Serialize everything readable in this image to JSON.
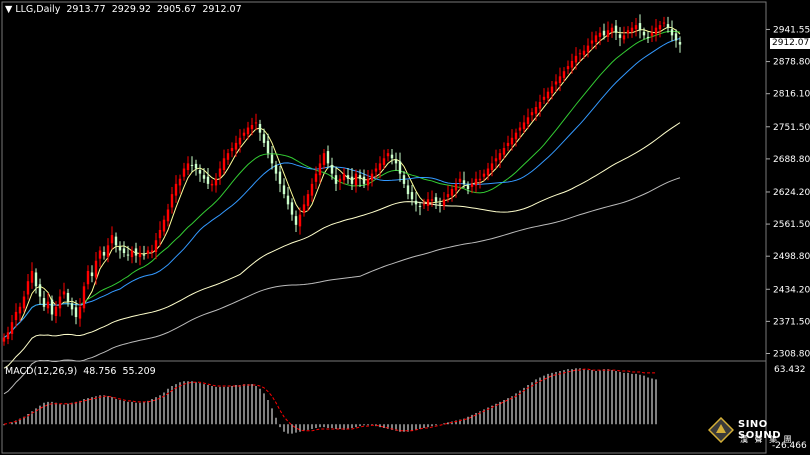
{
  "header": {
    "symbol": "LLG,Daily",
    "open": "2913.77",
    "high": "2929.92",
    "low": "2905.67",
    "close": "2912.07"
  },
  "price_tag": "2912.07",
  "macd_header": {
    "label": "MACD(12,26,9)",
    "macd": "48.756",
    "signal": "55.209"
  },
  "macd_axis": {
    "top": "63.432",
    "bottom": "-26.466"
  },
  "logo": {
    "name": "SINO SOUND",
    "chinese": "漢 聲 集 團"
  },
  "colors": {
    "background": "#000000",
    "bull": "#ff0000",
    "bear": "#ccffcc",
    "ma_fast": "#ffff99",
    "ma_mid": "#33cc33",
    "ma_blue": "#3399ff",
    "ma_slow": "#ffffcc",
    "ma_slowest": "#bbbbbb",
    "macd_hist": "#ffffff",
    "macd_signal": "#ff0000"
  },
  "chart_data": [
    {
      "type": "candlestick",
      "title": "LLG,Daily",
      "ylim": [
        2300,
        2960
      ],
      "yticks": [
        "2941.55",
        "2878.80",
        "2816.10",
        "2751.50",
        "2688.80",
        "2624.20",
        "2561.50",
        "2498.80",
        "2434.20",
        "2371.50",
        "2308.80"
      ],
      "series": [
        {
          "name": "price",
          "x_day": [
            0,
            1,
            2,
            3,
            4,
            5,
            6,
            7,
            8,
            9,
            10,
            11,
            12,
            13,
            14,
            15,
            16,
            17,
            18,
            19,
            20,
            21,
            22,
            23,
            24,
            25,
            26,
            27,
            28,
            29,
            30,
            31,
            32,
            33,
            34,
            35,
            36,
            37,
            38,
            39,
            40,
            41,
            42,
            43,
            44,
            45,
            46,
            47,
            48,
            49,
            50,
            51,
            52,
            53,
            54,
            55,
            56,
            57,
            58,
            59,
            60,
            61,
            62,
            63,
            64,
            65,
            66,
            67,
            68,
            69,
            70,
            71,
            72,
            73,
            74,
            75,
            76,
            77,
            78,
            79,
            80,
            81,
            82,
            83,
            84,
            85,
            86,
            87,
            88,
            89,
            90,
            91,
            92,
            93,
            94,
            95,
            96,
            97,
            98,
            99,
            100,
            101,
            102,
            103,
            104,
            105,
            106,
            107,
            108,
            109,
            110,
            111,
            112,
            113,
            114,
            115,
            116,
            117,
            118,
            119,
            120,
            121,
            122,
            123,
            124,
            125,
            126,
            127,
            128,
            129,
            130,
            131,
            132,
            133,
            134,
            135,
            136,
            137,
            138,
            139,
            140,
            141,
            142,
            143,
            144,
            145,
            146,
            147,
            148,
            149,
            150,
            151,
            152,
            153,
            154,
            155,
            156,
            157,
            158,
            159,
            160,
            161,
            162,
            163,
            164,
            165,
            166,
            167,
            168,
            169
          ],
          "close": [
            2340,
            2350,
            2370,
            2390,
            2400,
            2420,
            2450,
            2470,
            2440,
            2420,
            2400,
            2410,
            2385,
            2400,
            2420,
            2430,
            2410,
            2395,
            2380,
            2400,
            2440,
            2470,
            2460,
            2490,
            2510,
            2500,
            2520,
            2540,
            2520,
            2510,
            2505,
            2500,
            2510,
            2500,
            2505,
            2500,
            2510,
            2510,
            2530,
            2550,
            2570,
            2590,
            2620,
            2640,
            2650,
            2670,
            2680,
            2675,
            2670,
            2660,
            2650,
            2640,
            2640,
            2650,
            2670,
            2690,
            2700,
            2710,
            2720,
            2730,
            2740,
            2750,
            2755,
            2760,
            2740,
            2720,
            2700,
            2680,
            2660,
            2640,
            2620,
            2600,
            2580,
            2560,
            2580,
            2600,
            2620,
            2640,
            2660,
            2680,
            2700,
            2680,
            2660,
            2640,
            2650,
            2660,
            2650,
            2640,
            2660,
            2650,
            2640,
            2650,
            2660,
            2670,
            2680,
            2690,
            2700,
            2690,
            2680,
            2660,
            2640,
            2620,
            2610,
            2600,
            2595,
            2600,
            2610,
            2610,
            2605,
            2600,
            2610,
            2620,
            2630,
            2640,
            2650,
            2640,
            2630,
            2640,
            2650,
            2650,
            2660,
            2670,
            2680,
            2690,
            2700,
            2710,
            2720,
            2730,
            2740,
            2750,
            2760,
            2770,
            2780,
            2790,
            2800,
            2810,
            2820,
            2830,
            2840,
            2850,
            2860,
            2870,
            2880,
            2890,
            2895,
            2900,
            2910,
            2920,
            2930,
            2935,
            2930,
            2940,
            2945,
            2935,
            2925,
            2930,
            2940,
            2945,
            2950,
            2940,
            2930,
            2925,
            2935,
            2945,
            2950,
            2955,
            2945,
            2930,
            2920,
            2912
          ]
        }
      ]
    },
    {
      "type": "bar",
      "title": "MACD(12,26,9)",
      "ylim": [
        -26.466,
        63.432
      ],
      "series": [
        {
          "name": "MACD",
          "values": [
            -1,
            0,
            2,
            4,
            6,
            8,
            11,
            14,
            17,
            20,
            23,
            24,
            24,
            23,
            22,
            21,
            22,
            23,
            24,
            25,
            27,
            28,
            29,
            30,
            31,
            31,
            30,
            29,
            27,
            26,
            25,
            24,
            24,
            23,
            23,
            24,
            25,
            27,
            29,
            31,
            34,
            38,
            41,
            43,
            45,
            46,
            46,
            46,
            45,
            44,
            43,
            42,
            41,
            40,
            40,
            40,
            40,
            41,
            42,
            42,
            43,
            43,
            43,
            41,
            38,
            33,
            26,
            17,
            7,
            -3,
            -8,
            -10,
            -10,
            -9,
            -8,
            -7,
            -6,
            -5,
            -4,
            -3,
            -3,
            -4,
            -4,
            -5,
            -5,
            -6,
            -5,
            -4,
            -3,
            -2,
            -1,
            -1,
            -1,
            -2,
            -3,
            -4,
            -5,
            -6,
            -7,
            -8,
            -8,
            -8,
            -7,
            -6,
            -5,
            -4,
            -3,
            -2,
            -1,
            0,
            1,
            2,
            3,
            4,
            5,
            6,
            8,
            10,
            12,
            14,
            16,
            18,
            20,
            22,
            24,
            26,
            28,
            30,
            33,
            36,
            39,
            42,
            45,
            48,
            50,
            52,
            54,
            55,
            56,
            57,
            58,
            59,
            59,
            60,
            60,
            59,
            58,
            58,
            57,
            58,
            59,
            59,
            58,
            57,
            56,
            55,
            55,
            54,
            54,
            53,
            52,
            50,
            49,
            48
          ]
        },
        {
          "name": "Signal",
          "values": [
            0,
            1,
            2,
            3,
            5,
            7,
            9,
            12,
            14,
            17,
            19,
            21,
            22,
            22,
            22,
            22,
            22,
            22,
            23,
            24,
            25,
            26,
            27,
            28,
            29,
            30,
            30,
            29,
            28,
            27,
            26,
            25,
            25,
            24,
            24,
            24,
            24,
            25,
            26,
            28,
            30,
            33,
            36,
            39,
            41,
            43,
            44,
            45,
            45,
            45,
            44,
            43,
            42,
            41,
            41,
            41,
            41,
            41,
            41,
            41,
            42,
            42,
            42,
            42,
            41,
            39,
            35,
            30,
            23,
            15,
            8,
            3,
            -1,
            -4,
            -6,
            -7,
            -7,
            -7,
            -6,
            -5,
            -5,
            -5,
            -5,
            -5,
            -5,
            -5,
            -5,
            -5,
            -4,
            -3,
            -2,
            -2,
            -1,
            -1,
            -2,
            -3,
            -4,
            -5,
            -6,
            -7,
            -7,
            -7,
            -7,
            -6,
            -5,
            -4,
            -4,
            -3,
            -2,
            -1,
            0,
            1,
            2,
            3,
            4,
            5,
            6,
            8,
            10,
            12,
            14,
            16,
            18,
            20,
            22,
            24,
            26,
            28,
            30,
            33,
            36,
            39,
            41,
            44,
            46,
            48,
            50,
            52,
            53,
            54,
            55,
            56,
            57,
            58,
            58,
            59,
            59,
            58,
            58,
            58,
            58,
            58,
            58,
            58,
            57,
            57,
            57,
            56,
            56,
            56,
            55,
            55,
            55,
            55
          ]
        }
      ]
    }
  ]
}
